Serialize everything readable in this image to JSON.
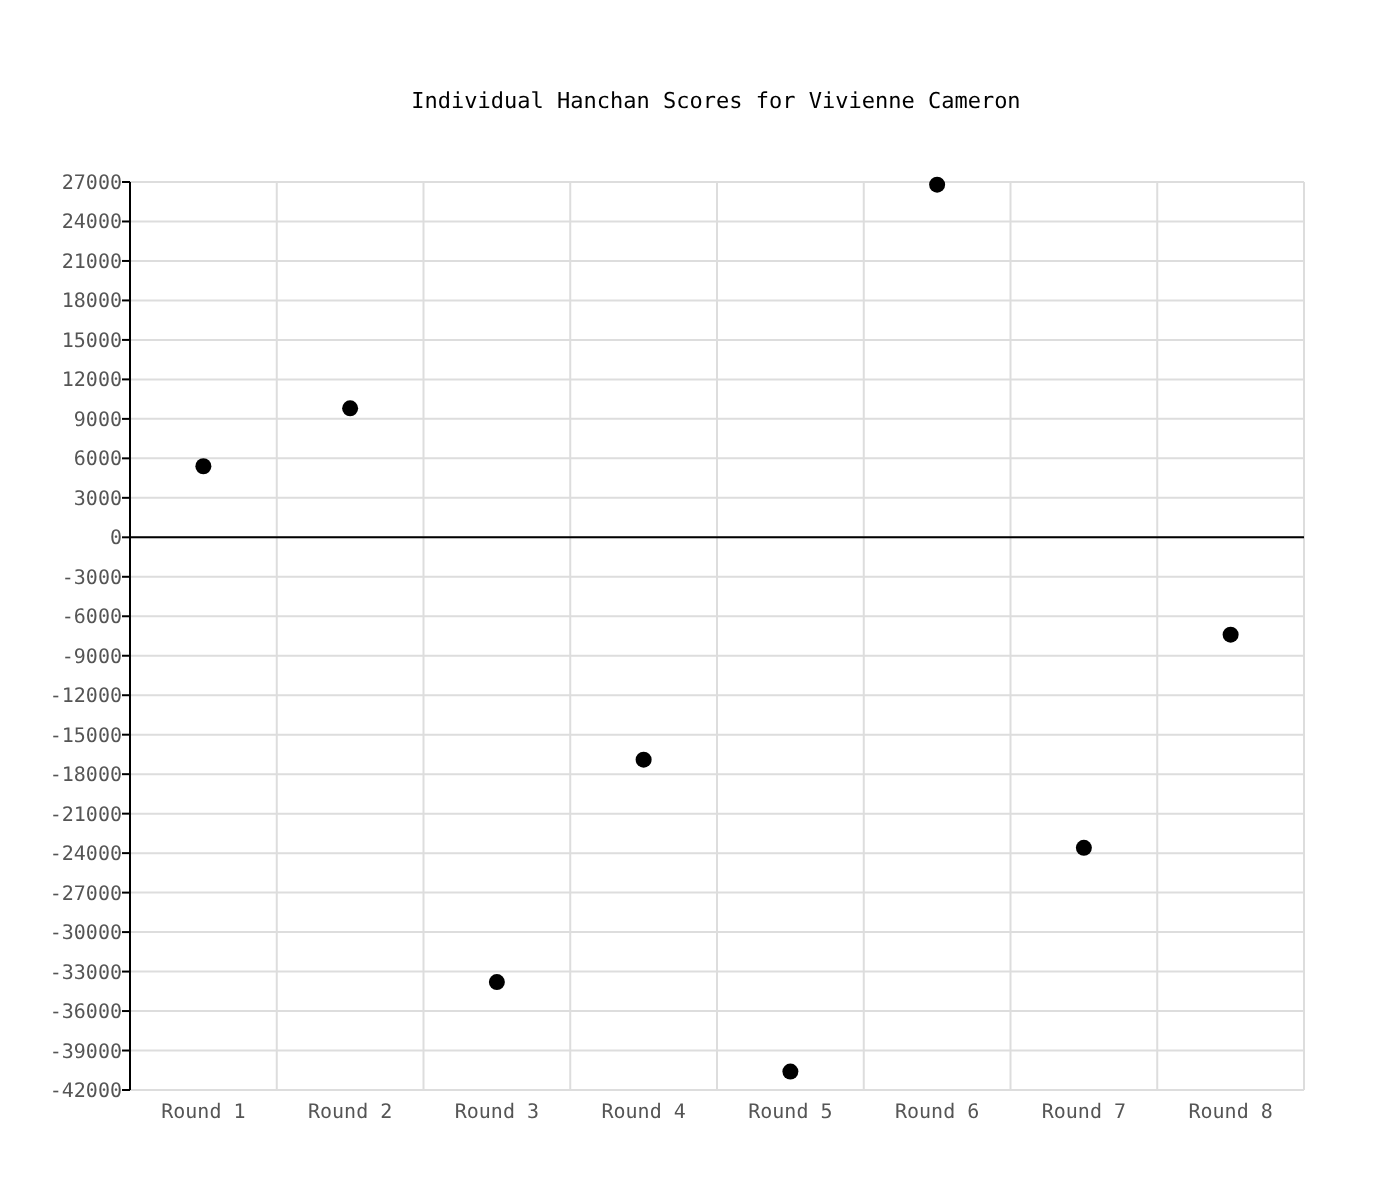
{
  "chart_data": {
    "type": "scatter",
    "title": "Individual Hanchan Scores for Vivienne Cameron",
    "categories": [
      "Round 1",
      "Round 2",
      "Round 3",
      "Round 4",
      "Round 5",
      "Round 6",
      "Round 7",
      "Round 8"
    ],
    "series": [
      {
        "color": "#000000",
        "values": [
          5400,
          9800,
          -33800,
          -16900,
          -40600,
          26800,
          -23600,
          -7400
        ]
      }
    ],
    "ylim": [
      -42000,
      27000
    ],
    "yticks": [
      -42000,
      -39000,
      -36000,
      -33000,
      -30000,
      -27000,
      -24000,
      -21000,
      -18000,
      -15000,
      -12000,
      -9000,
      -6000,
      -3000,
      0,
      3000,
      6000,
      9000,
      12000,
      15000,
      18000,
      21000,
      24000,
      27000
    ],
    "ref_lines": [
      {
        "axis": "y",
        "value": 0,
        "color": "#000000"
      }
    ],
    "grid": true,
    "marker": "circle"
  }
}
